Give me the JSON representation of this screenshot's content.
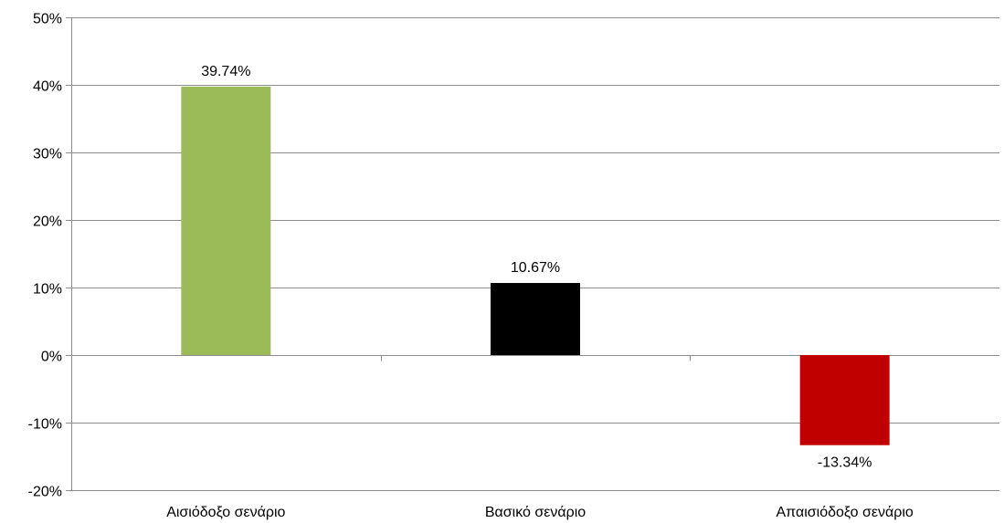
{
  "chart_data": {
    "type": "bar",
    "title": "",
    "xlabel": "",
    "ylabel": "",
    "categories": [
      "Αισιόδοξο σενάριο",
      "Βασικό σενάριο",
      "Απαισιόδοξο σενάριο"
    ],
    "values": [
      39.74,
      10.67,
      -13.34
    ],
    "value_labels": [
      "39.74%",
      "10.67%",
      "-13.34%"
    ],
    "bar_colors": [
      "#9BBB59",
      "#000000",
      "#C00000"
    ],
    "ylim": [
      -20,
      50
    ],
    "yticks": [
      50,
      40,
      30,
      20,
      10,
      0,
      -10,
      -20
    ],
    "ytick_labels": [
      "50%",
      "40%",
      "30%",
      "20%",
      "10%",
      "0%",
      "-10%",
      "-20%"
    ],
    "grid": true,
    "legend": false
  }
}
